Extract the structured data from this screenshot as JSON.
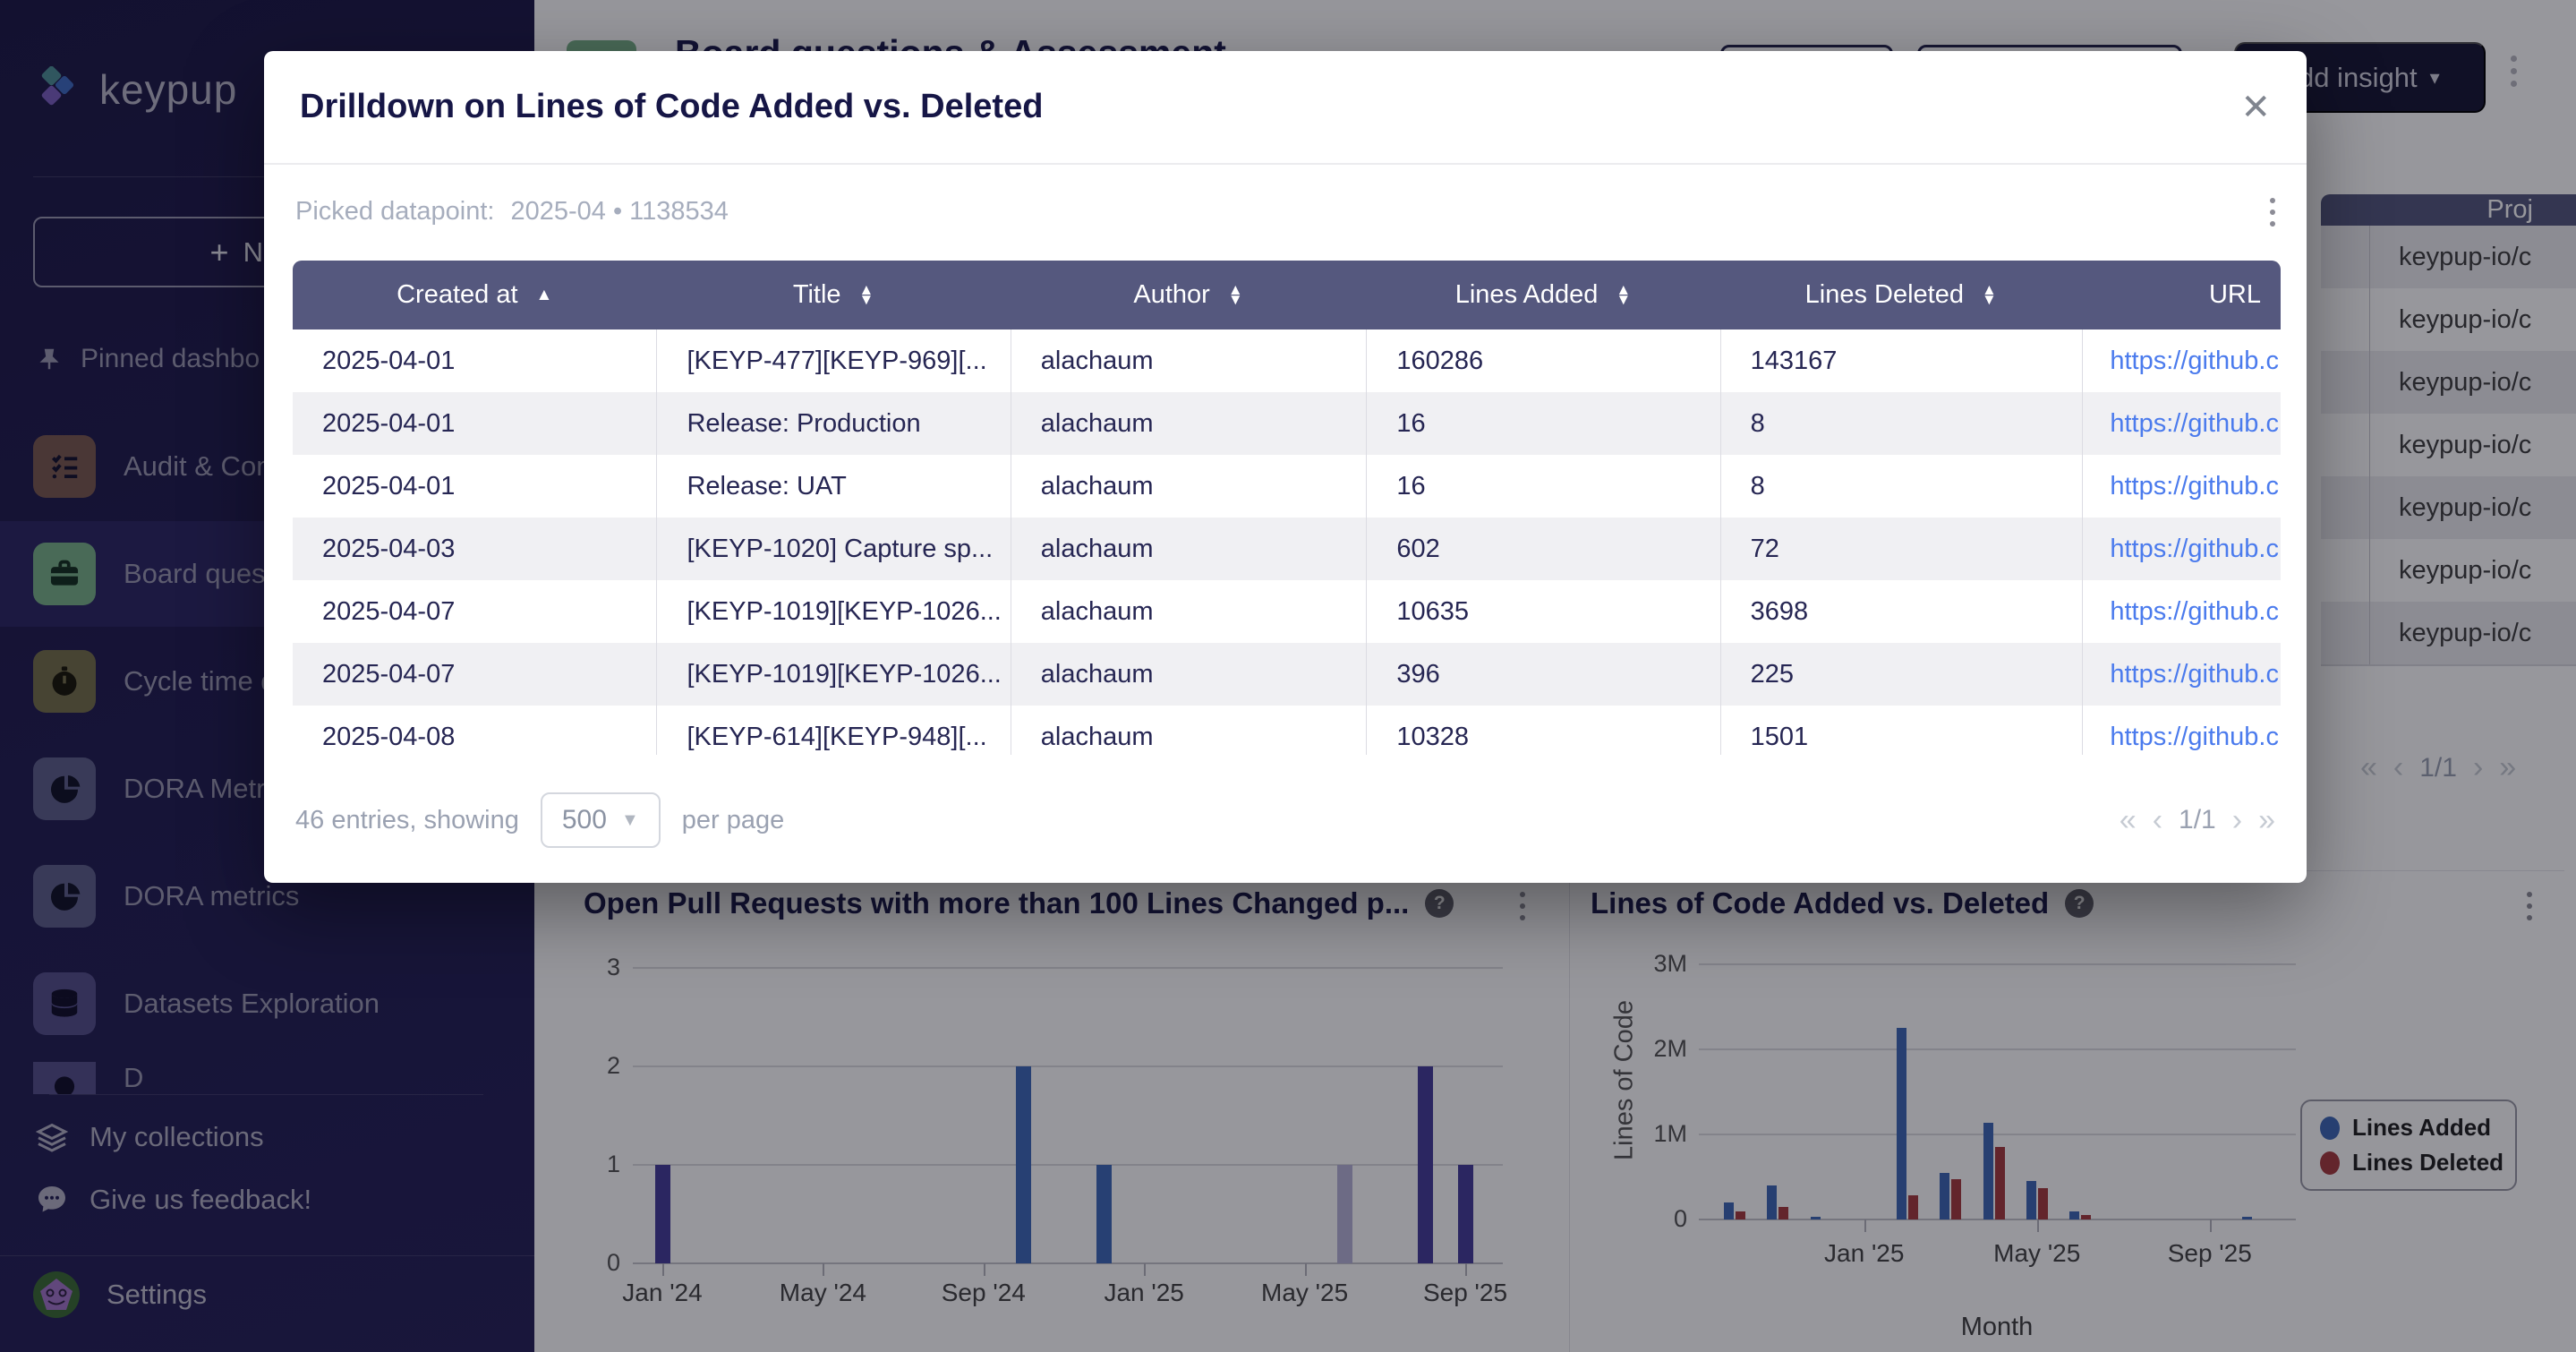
{
  "sidebar": {
    "logo_text": "keypup",
    "new_dashboard_button": "New d",
    "pinned_section_label": "Pinned dashbo",
    "items": [
      {
        "label": "Audit & Com",
        "chip_color": "#7a5a50",
        "icon": "checklist",
        "active": false
      },
      {
        "label": "Board quest",
        "chip_color": "#79b189",
        "icon": "briefcase",
        "active": true
      },
      {
        "label": "Cycle time d",
        "chip_color": "#76704a",
        "icon": "stopwatch",
        "active": false
      },
      {
        "label": "DORA Metric",
        "chip_color": "#5d608a",
        "icon": "pie",
        "active": false
      },
      {
        "label": "DORA metrics",
        "chip_color": "#5d608a",
        "icon": "pie",
        "active": false
      },
      {
        "label": "Datasets Exploration",
        "chip_color": "#55508b",
        "icon": "database",
        "active": false
      },
      {
        "label": "D",
        "chip_color": "#55508b",
        "icon": "circle",
        "active": false,
        "partial": true
      }
    ],
    "footer_links": [
      {
        "label": "My collections",
        "icon": "layers"
      },
      {
        "label": "Give us feedback!",
        "icon": "chat"
      }
    ],
    "settings_label": "Settings"
  },
  "header": {
    "page_title": "Board questions & Assessment",
    "add_insight_button": "Add insight",
    "caret": "▾"
  },
  "background_table": {
    "column_header": "Proj",
    "rows": [
      "keypup-io/c",
      "keypup-io/c",
      "keypup-io/c",
      "keypup-io/c",
      "keypup-io/c",
      "keypup-io/c",
      "keypup-io/c"
    ],
    "pagination": {
      "first": "«",
      "prev": "‹",
      "label": "1/1",
      "next": "›",
      "last": "»"
    }
  },
  "modal": {
    "title": "Drilldown on Lines of Code Added vs. Deleted",
    "close_icon": "✕",
    "picked_label": "Picked datapoint:",
    "picked_value": "2025-04 • 1138534",
    "table": {
      "columns": [
        {
          "label": "Created at",
          "sort": "asc"
        },
        {
          "label": "Title",
          "sort": "both"
        },
        {
          "label": "Author",
          "sort": "both"
        },
        {
          "label": "Lines Added",
          "sort": "both"
        },
        {
          "label": "Lines Deleted",
          "sort": "both"
        },
        {
          "label": "URL",
          "sort": "none"
        }
      ],
      "rows": [
        {
          "created_at": "2025-04-01",
          "title": "[KEYP-477][KEYP-969][...",
          "author": "alachaum",
          "lines_added": "160286",
          "lines_deleted": "143167",
          "url": "https://github.c"
        },
        {
          "created_at": "2025-04-01",
          "title": "Release: Production",
          "author": "alachaum",
          "lines_added": "16",
          "lines_deleted": "8",
          "url": "https://github.c"
        },
        {
          "created_at": "2025-04-01",
          "title": "Release: UAT",
          "author": "alachaum",
          "lines_added": "16",
          "lines_deleted": "8",
          "url": "https://github.c"
        },
        {
          "created_at": "2025-04-03",
          "title": "[KEYP-1020] Capture sp...",
          "author": "alachaum",
          "lines_added": "602",
          "lines_deleted": "72",
          "url": "https://github.c"
        },
        {
          "created_at": "2025-04-07",
          "title": "[KEYP-1019][KEYP-1026...",
          "author": "alachaum",
          "lines_added": "10635",
          "lines_deleted": "3698",
          "url": "https://github.c"
        },
        {
          "created_at": "2025-04-07",
          "title": "[KEYP-1019][KEYP-1026...",
          "author": "alachaum",
          "lines_added": "396",
          "lines_deleted": "225",
          "url": "https://github.c"
        },
        {
          "created_at": "2025-04-08",
          "title": "[KEYP-614][KEYP-948][...",
          "author": "alachaum",
          "lines_added": "10328",
          "lines_deleted": "1501",
          "url": "https://github.c"
        }
      ]
    },
    "footer": {
      "entries_text": "46 entries, showing",
      "per_page_value": "500",
      "per_page_suffix": "per page",
      "pagination": {
        "first": "«",
        "prev": "‹",
        "label": "1/1",
        "next": "›",
        "last": "»"
      }
    }
  },
  "chart_data": [
    {
      "type": "bar",
      "title": "Open Pull Requests with more than 100 Lines Changed p...",
      "xlabel": "",
      "ylabel": "",
      "ylim": [
        0,
        3
      ],
      "yticks": [
        0,
        1,
        2,
        3
      ],
      "x_ticks": [
        "Jan '24",
        "May '24",
        "Sep '24",
        "Jan '25",
        "May '25",
        "Sep '25"
      ],
      "grid": true,
      "bars": [
        {
          "month": "Jan '24",
          "value": 1,
          "color": "#463d99"
        },
        {
          "month": "Oct '24",
          "value": 2,
          "color": "#3f69b8"
        },
        {
          "month": "Dec '24",
          "value": 1,
          "color": "#3f69b8"
        },
        {
          "month": "Jun '25",
          "value": 1,
          "color": "#b7b4d8"
        },
        {
          "month": "Aug '25",
          "value": 2,
          "color": "#463d99"
        },
        {
          "month": "Sep '25",
          "value": 1,
          "color": "#463d99"
        }
      ]
    },
    {
      "type": "bar",
      "title": "Lines of Code Added vs. Deleted",
      "xlabel": "Month",
      "ylabel": "Lines of Code",
      "ylim": [
        0,
        3000000
      ],
      "ytick_labels": [
        "0",
        "1M",
        "2M",
        "3M"
      ],
      "x_ticks": [
        "Jan '25",
        "May '25",
        "Sep '25"
      ],
      "grid": true,
      "legend": [
        {
          "name": "Lines Added",
          "color": "#3e68b5"
        },
        {
          "name": "Lines Deleted",
          "color": "#a53b3f"
        }
      ],
      "series": [
        {
          "month": "Oct '24",
          "added": 200000,
          "deleted": 100000
        },
        {
          "month": "Nov '24",
          "added": 400000,
          "deleted": 150000
        },
        {
          "month": "Dec '24",
          "added": 30000,
          "deleted": 0
        },
        {
          "month": "Feb '25",
          "added": 2250000,
          "deleted": 280000
        },
        {
          "month": "Mar '25",
          "added": 550000,
          "deleted": 470000
        },
        {
          "month": "Apr '25",
          "added": 1138534,
          "deleted": 850000
        },
        {
          "month": "May '25",
          "added": 450000,
          "deleted": 370000
        },
        {
          "month": "Jun '25",
          "added": 100000,
          "deleted": 50000
        },
        {
          "month": "Oct '25",
          "added": 30000,
          "deleted": 0
        }
      ]
    }
  ]
}
